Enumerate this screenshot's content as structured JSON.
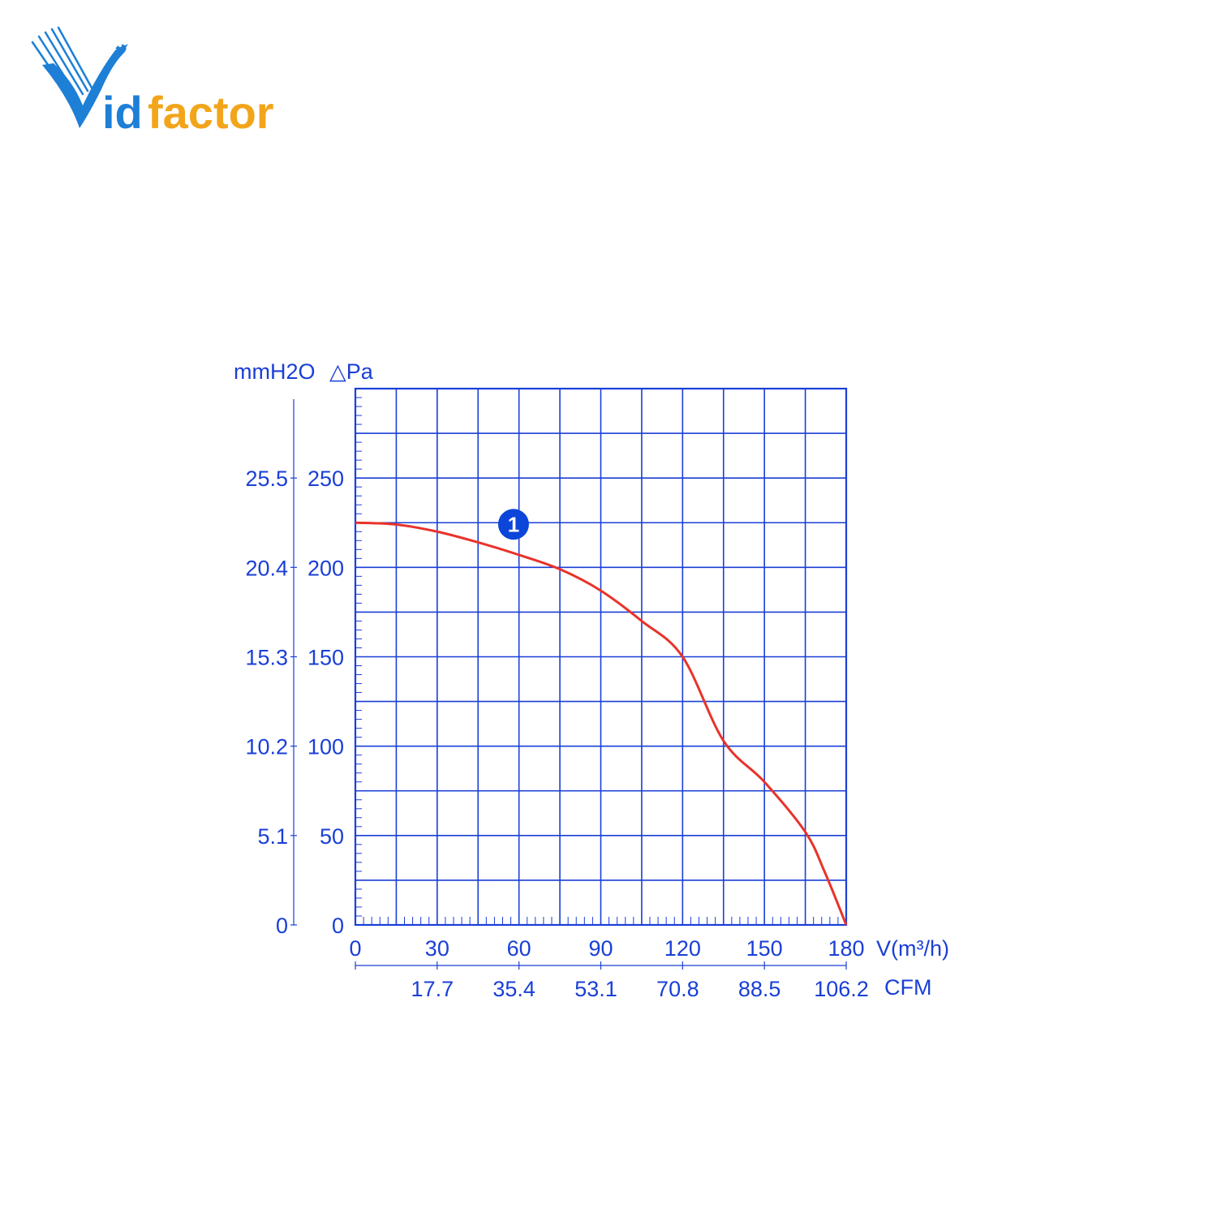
{
  "brand": {
    "name": "Vidfactor",
    "logo_text": "idfactor",
    "logo_mark": "V",
    "colors": {
      "blue": "#1d7fd6",
      "orange": "#f2a51a"
    }
  },
  "chart_data": {
    "type": "line",
    "title": "",
    "xlabel": "V(m³/h)",
    "x2label": "CFM",
    "ylabel": "△Pa",
    "y2label": "mmH2O",
    "xlim": [
      0,
      180
    ],
    "ylim": [
      0,
      300
    ],
    "grid": true,
    "x_ticks": [
      "0",
      "30",
      "60",
      "90",
      "120",
      "150",
      "180"
    ],
    "x2_ticks": [
      {
        "x": 30,
        "label": "17.7"
      },
      {
        "x": 60,
        "label": "35.4"
      },
      {
        "x": 90,
        "label": "53.1"
      },
      {
        "x": 120,
        "label": "70.8"
      },
      {
        "x": 150,
        "label": "88.5"
      },
      {
        "x": 180,
        "label": "106.2"
      }
    ],
    "y_ticks": [
      "0",
      "50",
      "100",
      "150",
      "200",
      "250"
    ],
    "y2_ticks": [
      "0",
      "5.1",
      "10.2",
      "15.3",
      "20.4",
      "25.5"
    ],
    "colors": {
      "grid": "#1a3fd6",
      "curve": "#e8332a",
      "badge": "#0b45d9"
    },
    "series": [
      {
        "name": "1",
        "x": [
          0,
          15,
          30,
          45,
          60,
          75,
          90,
          105,
          120,
          135,
          150,
          165,
          172,
          180
        ],
        "y": [
          225,
          224,
          220,
          214,
          207,
          199,
          187,
          170,
          150,
          103,
          80,
          52,
          30,
          0
        ]
      }
    ]
  }
}
